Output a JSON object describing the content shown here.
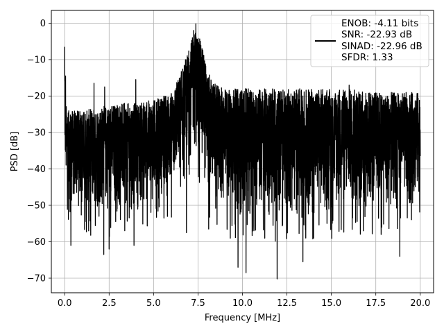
{
  "chart_data": {
    "type": "line",
    "xlabel": "Frequency [MHz]",
    "ylabel": "PSD [dB]",
    "xlim": [
      -0.75,
      20.75
    ],
    "ylim": [
      -74,
      3.5
    ],
    "grid": true,
    "x_ticks": [
      0.0,
      2.5,
      5.0,
      7.5,
      10.0,
      12.5,
      15.0,
      17.5,
      20.0
    ],
    "x_tick_labels": [
      "0.0",
      "2.5",
      "5.0",
      "7.5",
      "10.0",
      "12.5",
      "15.0",
      "17.5",
      "20.0"
    ],
    "y_ticks": [
      0,
      -10,
      -20,
      -30,
      -40,
      -50,
      -60,
      -70
    ],
    "y_tick_labels": [
      "0",
      "−10",
      "−20",
      "−30",
      "−40",
      "−50",
      "−60",
      "−70"
    ],
    "legend_position": "top-right",
    "legend": [
      "ENOB: -4.11 bits",
      "SNR: -22.93 dB",
      "SINAD: -22.96 dB",
      "SFDR: 1.33"
    ],
    "series_color": "#000000",
    "series": [
      {
        "x_range": [
          0,
          20
        ],
        "envelope": {
          "x": [
            0,
            0.05,
            0.2,
            1,
            2,
            3,
            4,
            5,
            6,
            6.5,
            7,
            7.3,
            7.5,
            7.8,
            8,
            8.5,
            9,
            10,
            12,
            14,
            16,
            18,
            20
          ],
          "upper": [
            -7,
            -22,
            -24,
            -24,
            -23,
            -22,
            -22,
            -21,
            -19,
            -14,
            -7,
            -2,
            -3,
            -7,
            -13,
            -17,
            -18,
            -18,
            -18,
            -18,
            -18,
            -19,
            -19
          ],
          "lower": [
            -40,
            -48,
            -50,
            -52,
            -53,
            -53,
            -52,
            -51,
            -48,
            -42,
            -38,
            -36,
            -38,
            -42,
            -48,
            -52,
            -53,
            -54,
            -54,
            -54,
            -53,
            -53,
            -50
          ]
        },
        "peaks": [
          {
            "x": 0.0,
            "y": -6.5
          },
          {
            "x": 0.05,
            "y": -14.5
          },
          {
            "x": 7.38,
            "y": -0.2
          },
          {
            "x": 7.25,
            "y": -2.0
          },
          {
            "x": 1.65,
            "y": -16.5
          },
          {
            "x": 2.25,
            "y": -17.5
          },
          {
            "x": 4.0,
            "y": -15.5
          },
          {
            "x": 16.0,
            "y": -17.0
          }
        ],
        "dips": [
          {
            "x": 0.35,
            "y": -55.0
          },
          {
            "x": 0.35,
            "y": -61.0
          },
          {
            "x": 1.35,
            "y": -57.0
          },
          {
            "x": 2.2,
            "y": -63.5
          },
          {
            "x": 2.5,
            "y": -62.0
          },
          {
            "x": 3.9,
            "y": -61.0
          },
          {
            "x": 9.75,
            "y": -67.0
          },
          {
            "x": 10.2,
            "y": -68.5
          },
          {
            "x": 11.95,
            "y": -70.2
          },
          {
            "x": 13.4,
            "y": -65.5
          },
          {
            "x": 14.0,
            "y": -59.0
          },
          {
            "x": 18.85,
            "y": -64.0
          },
          {
            "x": 17.8,
            "y": -58.0
          },
          {
            "x": 16.8,
            "y": -57.0
          },
          {
            "x": 6.85,
            "y": -57.5
          },
          {
            "x": 8.1,
            "y": -56.5
          }
        ]
      }
    ]
  }
}
